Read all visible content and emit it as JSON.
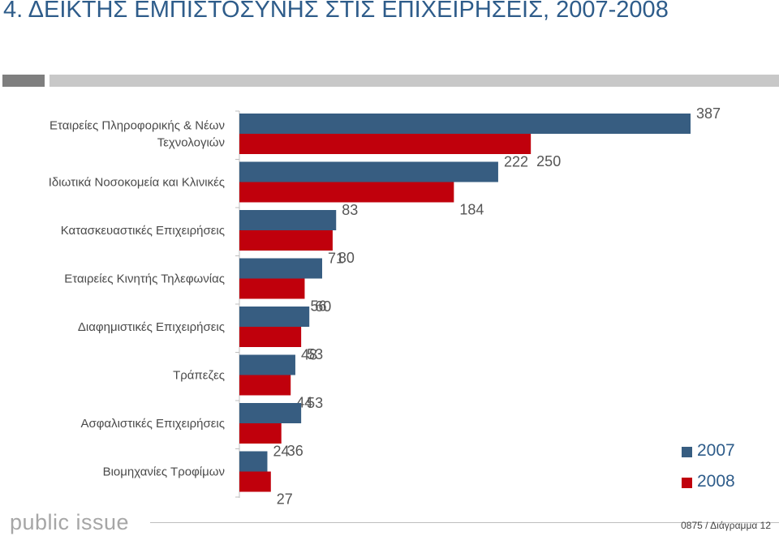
{
  "title": "4. ΔΕΙΚΤΗΣ ΕΜΠΙΣΤΟΣΥΝΗΣ ΣΤΙΣ ΕΠΙΧΕΙΡΗΣΕΙΣ, 2007-2008",
  "logo_text": "public issue",
  "footer": {
    "code": "0875 / Διάγραμμα 12"
  },
  "colors": {
    "series_2007": "#375d81",
    "series_2008": "#c0000c",
    "title": "#2e5c8a"
  },
  "chart_data": {
    "type": "bar",
    "orientation": "horizontal",
    "categories": [
      [
        "Εταιρείες Πληροφορικής & Νέων",
        "Τεχνολογιών"
      ],
      [
        "Ιδιωτικά Νοσοκομεία και Κλινικές"
      ],
      [
        "Κατασκευαστικές Επιχειρήσεις"
      ],
      [
        "Εταιρείες Κινητής Τηλεφωνίας"
      ],
      [
        "Διαφημιστικές Επιχειρήσεις"
      ],
      [
        "Τράπεζες"
      ],
      [
        "Ασφαλιστικές Επιχειρήσεις"
      ],
      [
        "Βιομηχανίες Τροφίμων"
      ]
    ],
    "series": [
      {
        "name": "2007",
        "values": [
          387,
          222,
          83,
          71,
          60,
          48,
          53,
          24
        ]
      },
      {
        "name": "2008",
        "values": [
          250,
          184,
          80,
          56,
          53,
          44,
          36,
          27
        ]
      }
    ],
    "data_labels": true,
    "legend_position": "bottom-right",
    "grid": false
  }
}
